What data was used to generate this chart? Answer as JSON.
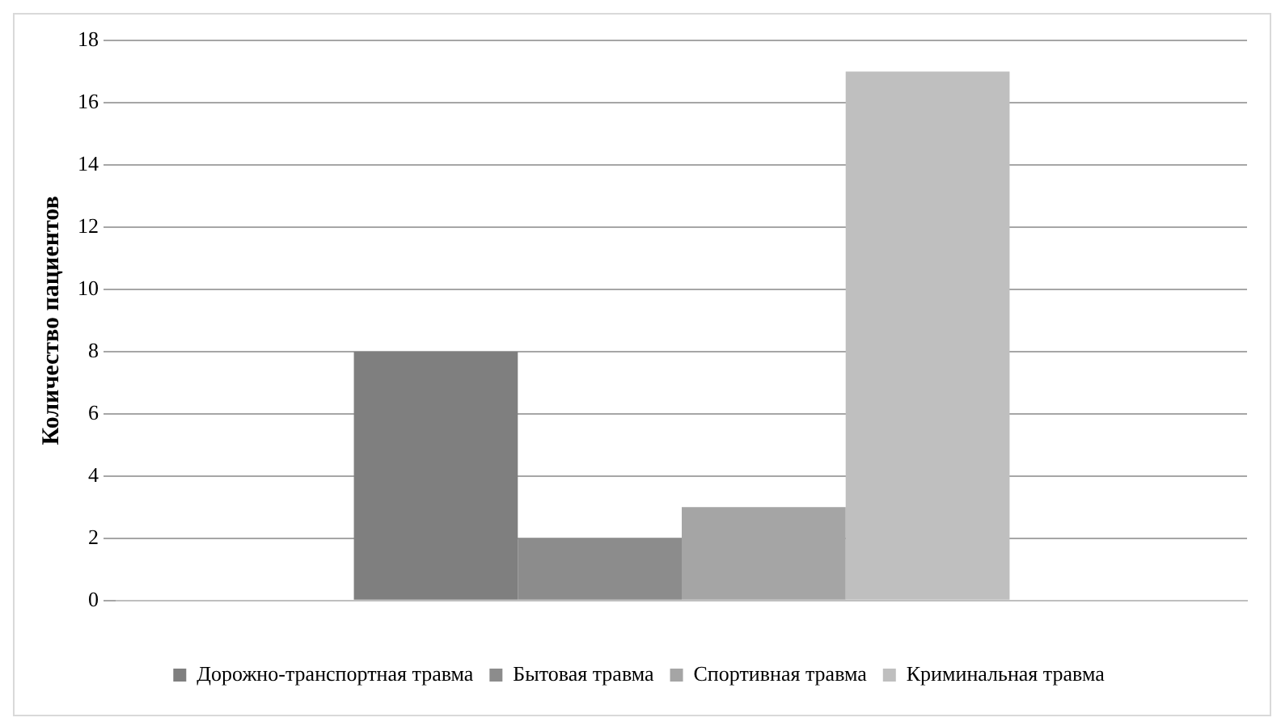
{
  "chart_data": {
    "type": "bar",
    "categories": [
      null
    ],
    "ylabel": "Количество пациентов",
    "series": [
      {
        "name": "Дорожно-транспортная травма",
        "color": "#7f7f7f",
        "values": [
          8
        ]
      },
      {
        "name": "Бытовая травма",
        "color": "#8c8c8c",
        "values": [
          2
        ]
      },
      {
        "name": "Спортивная травма",
        "color": "#a5a5a5",
        "values": [
          3
        ]
      },
      {
        "name": "Криминальная травма",
        "color": "#bfbfbf",
        "values": [
          17
        ]
      }
    ],
    "ylim": [
      0,
      18
    ],
    "yticks": [
      0,
      2,
      4,
      6,
      8,
      10,
      12,
      14,
      16,
      18
    ],
    "grid": "y",
    "legend": "bottom"
  }
}
